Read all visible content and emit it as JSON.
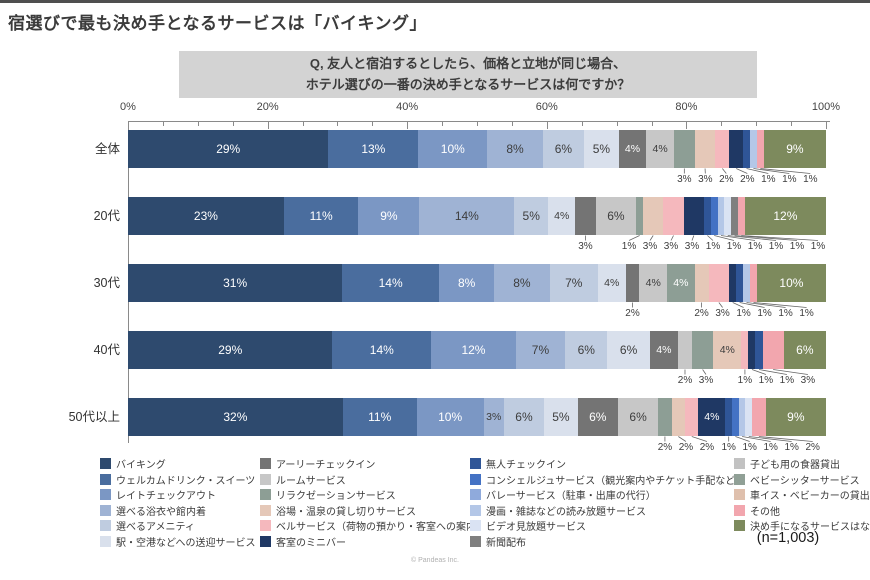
{
  "page": {
    "title": "宿選びで最も決め手となるサービスは「バイキング」",
    "question_line1": "Q, 友人と宿泊するとしたら、価格と立地が同じ場合、",
    "question_line2": "ホテル選びの一番の決め手となるサービスは何ですか？",
    "sample_size": "(n=1,003)",
    "copyright": "© Pandeas Inc."
  },
  "chart_data": {
    "type": "bar",
    "stacked": true,
    "orientation": "horizontal",
    "value_unit": "%",
    "axis": {
      "min": 0,
      "max": 100,
      "tick_labels": [
        "0%",
        "20%",
        "40%",
        "60%",
        "80%",
        "100%"
      ],
      "minor_step": 5
    },
    "legend_position": "bottom",
    "legend": [
      {
        "label": "バイキング",
        "color": "#2e4a6e"
      },
      {
        "label": "ウェルカムドリンク・スイーツ",
        "color": "#4a6d9e"
      },
      {
        "label": "レイトチェックアウト",
        "color": "#7b97c4"
      },
      {
        "label": "選べる浴衣や館内着",
        "color": "#9fb3d4"
      },
      {
        "label": "選べるアメニティ",
        "color": "#bfcce0"
      },
      {
        "label": "駅・空港などへの送迎サービス",
        "color": "#d9e0ec"
      },
      {
        "label": "アーリーチェックイン",
        "color": "#747474"
      },
      {
        "label": "ルームサービス",
        "color": "#c7c7c7"
      },
      {
        "label": "リラクゼーションサービス",
        "color": "#8d9e95"
      },
      {
        "label": "浴場・温泉の貸し切りサービス",
        "color": "#e5c8b8"
      },
      {
        "label": "ベルサービス（荷物の預かり・客室への案内）",
        "color": "#f5b8bd"
      },
      {
        "label": "客室のミニバー",
        "color": "#1f3864"
      },
      {
        "label": "無人チェックイン",
        "color": "#2f5597"
      },
      {
        "label": "コンシェルジュサービス（観光案内やチケット手配など）",
        "color": "#4472c4"
      },
      {
        "label": "バレーサービス（駐車・出庫の代行）",
        "color": "#8faadc"
      },
      {
        "label": "漫画・雑誌などの読み放題サービス",
        "color": "#b4c7e7"
      },
      {
        "label": "ビデオ見放題サービス",
        "color": "#dae3f3"
      },
      {
        "label": "新聞配布",
        "color": "#7f7f7f"
      },
      {
        "label": "子ども用の食器貸出",
        "color": "#c2c2c2"
      },
      {
        "label": "ベビーシッターサービス",
        "color": "#90a096"
      },
      {
        "label": "車イス・ベビーカーの貸出",
        "color": "#dfc0ad"
      },
      {
        "label": "その他",
        "color": "#f2a6ae"
      },
      {
        "label": "決め手になるサービスはない",
        "color": "#7d8a5d"
      }
    ],
    "rows": [
      {
        "label": "全体",
        "segments": [
          {
            "category": "バイキング",
            "value": 29,
            "text": "29%",
            "label_position": "inside"
          },
          {
            "category": "ウェルカムドリンク・スイーツ",
            "value": 13,
            "text": "13%",
            "label_position": "inside"
          },
          {
            "category": "レイトチェックアウト",
            "value": 10,
            "text": "10%",
            "label_position": "inside"
          },
          {
            "category": "選べる浴衣や館内着",
            "value": 8,
            "text": "8%",
            "label_position": "inside"
          },
          {
            "category": "選べるアメニティ",
            "value": 6,
            "text": "6%",
            "label_position": "inside"
          },
          {
            "category": "駅・空港などへの送迎サービス",
            "value": 5,
            "text": "5%",
            "label_position": "inside"
          },
          {
            "category": "アーリーチェックイン",
            "value": 4,
            "text": "4%",
            "label_position": "inside"
          },
          {
            "category": "ルームサービス",
            "value": 4,
            "text": "4%",
            "label_position": "inside"
          },
          {
            "category": "リラクゼーションサービス",
            "value": 3,
            "text": "3%",
            "label_position": "below"
          },
          {
            "category": "浴場・温泉の貸し切りサービス",
            "value": 3,
            "text": "3%",
            "label_position": "below"
          },
          {
            "category": "ベルサービス（荷物の預かり・客室への案内）",
            "value": 2,
            "text": "2%",
            "label_position": "below"
          },
          {
            "category": "客室のミニバー",
            "value": 2,
            "text": "2%",
            "label_position": "below"
          },
          {
            "category": "無人チェックイン",
            "value": 1,
            "text": "1%",
            "label_position": "below"
          },
          {
            "category": "漫画・雑誌などの読み放題サービス",
            "value": 1,
            "text": "1%",
            "label_position": "below"
          },
          {
            "category": "その他",
            "value": 1,
            "text": "1%",
            "label_position": "below"
          },
          {
            "category": "決め手になるサービスはない",
            "value": 9,
            "text": "9%",
            "label_position": "inside"
          }
        ]
      },
      {
        "label": "20代",
        "segments": [
          {
            "category": "バイキング",
            "value": 23,
            "text": "23%",
            "label_position": "inside"
          },
          {
            "category": "ウェルカムドリンク・スイーツ",
            "value": 11,
            "text": "11%",
            "label_position": "inside"
          },
          {
            "category": "レイトチェックアウト",
            "value": 9,
            "text": "9%",
            "label_position": "inside"
          },
          {
            "category": "選べる浴衣や館内着",
            "value": 14,
            "text": "14%",
            "label_position": "inside"
          },
          {
            "category": "選べるアメニティ",
            "value": 5,
            "text": "5%",
            "label_position": "inside"
          },
          {
            "category": "駅・空港などへの送迎サービス",
            "value": 4,
            "text": "4%",
            "label_position": "inside"
          },
          {
            "category": "アーリーチェックイン",
            "value": 3,
            "text": "3%",
            "label_position": "below"
          },
          {
            "category": "ルームサービス",
            "value": 6,
            "text": "6%",
            "label_position": "inside"
          },
          {
            "category": "リラクゼーションサービス",
            "value": 1,
            "text": "1%",
            "label_position": "below"
          },
          {
            "category": "浴場・温泉の貸し切りサービス",
            "value": 3,
            "text": "3%",
            "label_position": "below"
          },
          {
            "category": "ベルサービス（荷物の預かり・客室への案内）",
            "value": 3,
            "text": "3%",
            "label_position": "below"
          },
          {
            "category": "客室のミニバー",
            "value": 3,
            "text": "3%",
            "label_position": "below"
          },
          {
            "category": "無人チェックイン",
            "value": 1,
            "text": "1%",
            "label_position": "below"
          },
          {
            "category": "コンシェルジュサービス（観光案内やチケット手配など）",
            "value": 1,
            "text": "1%",
            "label_position": "below"
          },
          {
            "category": "漫画・雑誌などの読み放題サービス",
            "value": 1,
            "text": "1%",
            "label_position": "below"
          },
          {
            "category": "ビデオ見放題サービス",
            "value": 1,
            "text": "1%",
            "label_position": "below"
          },
          {
            "category": "新聞配布",
            "value": 1,
            "text": "1%",
            "label_position": "below"
          },
          {
            "category": "その他",
            "value": 1,
            "text": "1%",
            "label_position": "below"
          },
          {
            "category": "決め手になるサービスはない",
            "value": 12,
            "text": "12%",
            "label_position": "inside"
          }
        ]
      },
      {
        "label": "30代",
        "segments": [
          {
            "category": "バイキング",
            "value": 31,
            "text": "31%",
            "label_position": "inside"
          },
          {
            "category": "ウェルカムドリンク・スイーツ",
            "value": 14,
            "text": "14%",
            "label_position": "inside"
          },
          {
            "category": "レイトチェックアウト",
            "value": 8,
            "text": "8%",
            "label_position": "inside"
          },
          {
            "category": "選べる浴衣や館内着",
            "value": 8,
            "text": "8%",
            "label_position": "inside"
          },
          {
            "category": "選べるアメニティ",
            "value": 7,
            "text": "7%",
            "label_position": "inside"
          },
          {
            "category": "駅・空港などへの送迎サービス",
            "value": 4,
            "text": "4%",
            "label_position": "inside"
          },
          {
            "category": "アーリーチェックイン",
            "value": 2,
            "text": "2%",
            "label_position": "below"
          },
          {
            "category": "ルームサービス",
            "value": 4,
            "text": "4%",
            "label_position": "inside"
          },
          {
            "category": "リラクゼーションサービス",
            "value": 4,
            "text": "4%",
            "label_position": "inside"
          },
          {
            "category": "浴場・温泉の貸し切りサービス",
            "value": 2,
            "text": "2%",
            "label_position": "below"
          },
          {
            "category": "ベルサービス（荷物の預かり・客室への案内）",
            "value": 3,
            "text": "3%",
            "label_position": "below"
          },
          {
            "category": "客室のミニバー",
            "value": 1,
            "text": "1%",
            "label_position": "below"
          },
          {
            "category": "無人チェックイン",
            "value": 1,
            "text": "1%",
            "label_position": "below"
          },
          {
            "category": "漫画・雑誌などの読み放題サービス",
            "value": 1,
            "text": "1%",
            "label_position": "below"
          },
          {
            "category": "その他",
            "value": 1,
            "text": "1%",
            "label_position": "below"
          },
          {
            "category": "決め手になるサービスはない",
            "value": 10,
            "text": "10%",
            "label_position": "inside"
          }
        ]
      },
      {
        "label": "40代",
        "segments": [
          {
            "category": "バイキング",
            "value": 29,
            "text": "29%",
            "label_position": "inside"
          },
          {
            "category": "ウェルカムドリンク・スイーツ",
            "value": 14,
            "text": "14%",
            "label_position": "inside"
          },
          {
            "category": "レイトチェックアウト",
            "value": 12,
            "text": "12%",
            "label_position": "inside"
          },
          {
            "category": "選べる浴衣や館内着",
            "value": 7,
            "text": "7%",
            "label_position": "inside"
          },
          {
            "category": "選べるアメニティ",
            "value": 6,
            "text": "6%",
            "label_position": "inside"
          },
          {
            "category": "駅・空港などへの送迎サービス",
            "value": 6,
            "text": "6%",
            "label_position": "inside"
          },
          {
            "category": "アーリーチェックイン",
            "value": 4,
            "text": "4%",
            "label_position": "inside"
          },
          {
            "category": "ルームサービス",
            "value": 2,
            "text": "2%",
            "label_position": "below"
          },
          {
            "category": "リラクゼーションサービス",
            "value": 3,
            "text": "3%",
            "label_position": "below"
          },
          {
            "category": "浴場・温泉の貸し切りサービス",
            "value": 4,
            "text": "4%",
            "label_position": "inside"
          },
          {
            "category": "ベルサービス（荷物の預かり・客室への案内）",
            "value": 1,
            "text": "1%",
            "label_position": "below"
          },
          {
            "category": "客室のミニバー",
            "value": 1,
            "text": "1%",
            "label_position": "below"
          },
          {
            "category": "無人チェックイン",
            "value": 1,
            "text": "1%",
            "label_position": "below"
          },
          {
            "category": "その他",
            "value": 3,
            "text": "3%",
            "label_position": "below"
          },
          {
            "category": "決め手になるサービスはない",
            "value": 6,
            "text": "6%",
            "label_position": "inside"
          }
        ]
      },
      {
        "label": "50代以上",
        "segments": [
          {
            "category": "バイキング",
            "value": 32,
            "text": "32%",
            "label_position": "inside"
          },
          {
            "category": "ウェルカムドリンク・スイーツ",
            "value": 11,
            "text": "11%",
            "label_position": "inside"
          },
          {
            "category": "レイトチェックアウト",
            "value": 10,
            "text": "10%",
            "label_position": "inside"
          },
          {
            "category": "選べる浴衣や館内着",
            "value": 3,
            "text": "3%",
            "label_position": "inside"
          },
          {
            "category": "選べるアメニティ",
            "value": 6,
            "text": "6%",
            "label_position": "inside"
          },
          {
            "category": "駅・空港などへの送迎サービス",
            "value": 5,
            "text": "5%",
            "label_position": "inside"
          },
          {
            "category": "アーリーチェックイン",
            "value": 6,
            "text": "6%",
            "label_position": "inside"
          },
          {
            "category": "ルームサービス",
            "value": 6,
            "text": "6%",
            "label_position": "inside"
          },
          {
            "category": "リラクゼーションサービス",
            "value": 2,
            "text": "2%",
            "label_position": "below"
          },
          {
            "category": "浴場・温泉の貸し切りサービス",
            "value": 2,
            "text": "2%",
            "label_position": "below"
          },
          {
            "category": "ベルサービス（荷物の預かり・客室への案内）",
            "value": 2,
            "text": "2%",
            "label_position": "below"
          },
          {
            "category": "客室のミニバー",
            "value": 4,
            "text": "4%",
            "label_position": "inside"
          },
          {
            "category": "無人チェックイン",
            "value": 1,
            "text": "1%",
            "label_position": "below"
          },
          {
            "category": "コンシェルジュサービス（観光案内やチケット手配など）",
            "value": 1,
            "text": "1%",
            "label_position": "below"
          },
          {
            "category": "漫画・雑誌などの読み放題サービス",
            "value": 1,
            "text": "1%",
            "label_position": "below"
          },
          {
            "category": "ビデオ見放題サービス",
            "value": 1,
            "text": "1%",
            "label_position": "below"
          },
          {
            "category": "その他",
            "value": 2,
            "text": "2%",
            "label_position": "below"
          },
          {
            "category": "決め手になるサービスはない",
            "value": 9,
            "text": "9%",
            "label_position": "inside"
          }
        ]
      }
    ]
  }
}
